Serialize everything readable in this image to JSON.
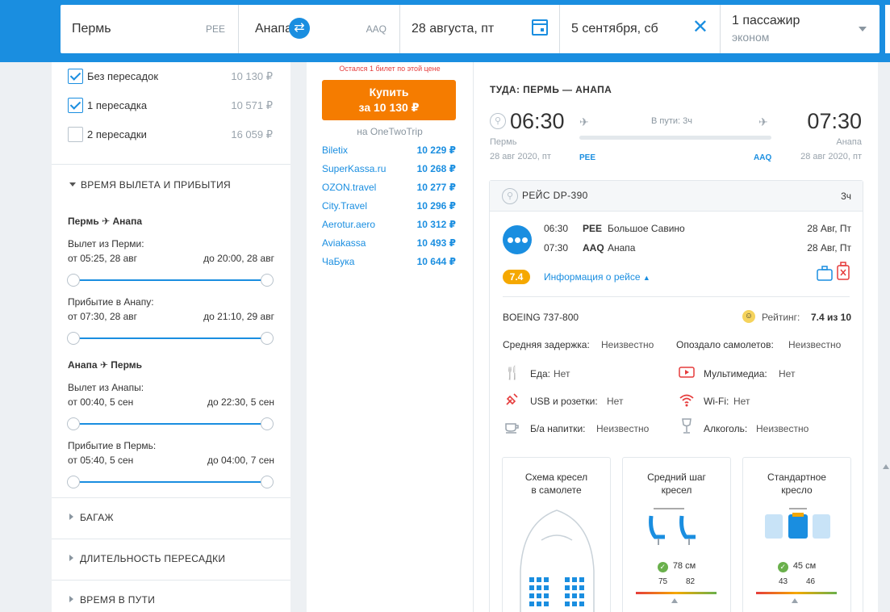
{
  "search": {
    "from_city": "Пермь",
    "from_code": "PEE",
    "to_city": "Анапа",
    "to_code": "AAQ",
    "depart_date": "28 августа, пт",
    "return_date": "5 сентября, сб",
    "passengers": "1 пассажир",
    "class": "эконом"
  },
  "filters": {
    "stops": [
      {
        "label": "Без пересадок",
        "price": "10 130 ₽",
        "checked": true
      },
      {
        "label": "1 пересадка",
        "price": "10 571 ₽",
        "checked": true
      },
      {
        "label": "2 пересадки",
        "price": "16 059 ₽",
        "checked": false
      }
    ],
    "time_section": "ВРЕМЯ ВЫЛЕТА И ПРИБЫТИЯ",
    "outbound": {
      "route_from": "Пермь",
      "route_to": "Анапа",
      "dep_label": "Вылет из Перми:",
      "dep_from": "от 05:25, 28 авг",
      "dep_to": "до 20:00, 28 авг",
      "arr_label": "Прибытие в Анапу:",
      "arr_from": "от 07:30, 28 авг",
      "arr_to": "до 21:10, 29 авг"
    },
    "inbound": {
      "route_from": "Анапа",
      "route_to": "Пермь",
      "dep_label": "Вылет из Анапы:",
      "dep_from": "от 00:40, 5 сен",
      "dep_to": "до 22:30, 5 сен",
      "arr_label": "Прибытие в Пермь:",
      "arr_from": "от 05:40, 5 сен",
      "arr_to": "до 04:00, 7 сен"
    },
    "baggage": "БАГАЖ",
    "transfer_duration": "ДЛИТЕЛЬНОСТЬ ПЕРЕСАДКИ",
    "travel_time": "ВРЕМЯ В ПУТИ"
  },
  "offers": {
    "warning": "Остался 1 билет по этой цене",
    "buy_line1": "Купить",
    "buy_line2": "за 10 130 ₽",
    "via": "на OneTwoTrip",
    "agencies": [
      {
        "name": "Biletix",
        "price": "10 229 ₽"
      },
      {
        "name": "SuperKassa.ru",
        "price": "10 268 ₽"
      },
      {
        "name": "OZON.travel",
        "price": "10 277 ₽"
      },
      {
        "name": "City.Travel",
        "price": "10 296 ₽"
      },
      {
        "name": "Aerotur.aero",
        "price": "10 312 ₽"
      },
      {
        "name": "Aviakassa",
        "price": "10 493 ₽"
      },
      {
        "name": "ЧаБука",
        "price": "10 644 ₽"
      }
    ]
  },
  "details": {
    "direction": "ТУДА: ПЕРМЬ — АНАПА",
    "dep_time": "06:30",
    "dep_city": "Пермь",
    "dep_date": "28 авг 2020, пт",
    "dep_code": "PEE",
    "arr_time": "07:30",
    "arr_city": "Анапа",
    "arr_date": "28 авг 2020, пт",
    "arr_code": "AAQ",
    "in_flight": "В пути: 3ч",
    "flight": {
      "title": "РЕЙС DP-390",
      "duration": "3ч",
      "seg1_time": "06:30",
      "seg1_code": "PEE",
      "seg1_airport": "Большое Савино",
      "seg1_date": "28 Авг, Пт",
      "seg2_time": "07:30",
      "seg2_code": "AAQ",
      "seg2_airport": "Анапа",
      "seg2_date": "28 Авг, Пт",
      "rating": "7.4",
      "info_link": "Информация о рейсе",
      "aircraft": "BOEING 737-800",
      "rating_label": "Рейтинг:",
      "rating_value": "7.4 из 10",
      "delay_label": "Средняя задержка:",
      "delay_value": "Неизвестно",
      "late_label": "Опоздало самолетов:",
      "late_value": "Неизвестно",
      "food_label": "Еда:",
      "food_value": "Нет",
      "media_label": "Мультимедиа:",
      "media_value": "Нет",
      "usb_label": "USB и розетки:",
      "usb_value": "Нет",
      "wifi_label": "Wi-Fi:",
      "wifi_value": "Нет",
      "drinks_label": "Б/а напитки:",
      "drinks_value": "Неизвестно",
      "alcohol_label": "Алкоголь:",
      "alcohol_value": "Неизвестно"
    },
    "seat_map_title1": "Схема кресел",
    "seat_map_title2": "в самолете",
    "pitch_title1": "Средний шаг",
    "pitch_title2": "кресел",
    "pitch_value": "78 см",
    "pitch_min": "75",
    "pitch_max": "82",
    "seat_title1": "Стандартное",
    "seat_title2": "кресло",
    "seat_value": "45 см",
    "seat_min": "43",
    "seat_max": "46"
  },
  "colors": {
    "brand": "#1a8ee0",
    "buy": "#f57c00",
    "warning": "#e53c3c",
    "rating": "#f5a800"
  }
}
